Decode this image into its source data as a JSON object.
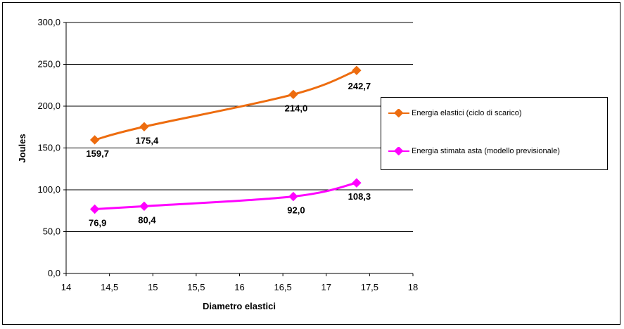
{
  "chart_data": {
    "type": "line",
    "xlabel": "Diametro elastici",
    "ylabel": "Joules",
    "xlim": [
      14,
      18
    ],
    "ylim": [
      0,
      300
    ],
    "x_ticks": [
      "14",
      "14,5",
      "15",
      "15,5",
      "16",
      "16,5",
      "17",
      "17,5",
      "18"
    ],
    "y_ticks": [
      "0,0",
      "50,0",
      "100,0",
      "150,0",
      "200,0",
      "250,0",
      "300,0"
    ],
    "grid": "horizontal",
    "legend_position": "right",
    "series": [
      {
        "name": "Energia elastici (ciclo di scarico)",
        "color": "#ED6C0F",
        "marker": "diamond",
        "x": [
          14.33,
          14.9,
          16.62,
          17.35
        ],
        "y": [
          159.7,
          175.4,
          214.0,
          242.7
        ],
        "labels": [
          "159,7",
          "175,4",
          "214,0",
          "242,7"
        ]
      },
      {
        "name": "Energia stimata asta (modello previsionale)",
        "color": "#FF00FF",
        "marker": "diamond",
        "x": [
          14.33,
          14.9,
          16.62,
          17.35
        ],
        "y": [
          76.9,
          80.4,
          92.0,
          108.3
        ],
        "labels": [
          "76,9",
          "80,4",
          "92,0",
          "108,3"
        ]
      }
    ]
  }
}
